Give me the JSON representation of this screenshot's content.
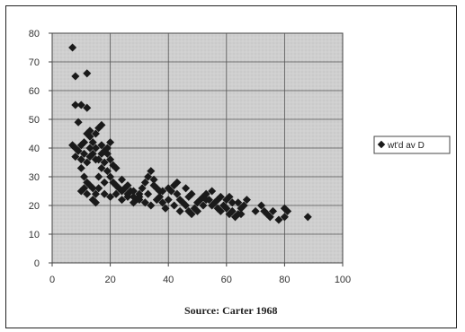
{
  "chart_data": {
    "type": "scatter",
    "caption": "Source: Carter 1968",
    "xlim": [
      0,
      100
    ],
    "ylim": [
      0,
      80
    ],
    "xticks": [
      "0",
      "20",
      "40",
      "60",
      "80",
      "100"
    ],
    "yticks": [
      "0",
      "10",
      "20",
      "30",
      "40",
      "50",
      "60",
      "70",
      "80"
    ],
    "grid": true,
    "legend_position": "right",
    "marker_color": "#1a1a1a",
    "plot_background": "#c9c9c9",
    "series": [
      {
        "name": "wt'd av D",
        "points": [
          [
            7,
            75
          ],
          [
            8,
            65
          ],
          [
            12,
            66
          ],
          [
            8,
            55
          ],
          [
            10,
            55
          ],
          [
            12,
            54
          ],
          [
            9,
            49
          ],
          [
            7,
            41
          ],
          [
            8,
            40
          ],
          [
            10,
            41
          ],
          [
            11,
            42
          ],
          [
            12,
            45
          ],
          [
            13,
            44
          ],
          [
            15,
            45
          ],
          [
            16,
            47
          ],
          [
            17,
            48
          ],
          [
            13,
            40
          ],
          [
            14,
            38
          ],
          [
            15,
            36
          ],
          [
            12,
            35
          ],
          [
            10,
            33
          ],
          [
            11,
            30
          ],
          [
            12,
            28
          ],
          [
            13,
            27
          ],
          [
            14,
            26
          ],
          [
            16,
            30
          ],
          [
            17,
            33
          ],
          [
            18,
            35
          ],
          [
            19,
            32
          ],
          [
            20,
            30
          ],
          [
            21,
            28
          ],
          [
            22,
            27
          ],
          [
            23,
            26
          ],
          [
            24,
            25
          ],
          [
            18,
            28
          ],
          [
            16,
            26
          ],
          [
            15,
            24
          ],
          [
            14,
            22
          ],
          [
            15,
            21
          ],
          [
            11,
            26
          ],
          [
            10,
            25
          ],
          [
            12,
            24
          ],
          [
            20,
            36
          ],
          [
            21,
            34
          ],
          [
            22,
            33
          ],
          [
            19,
            38
          ],
          [
            18,
            39
          ],
          [
            17,
            41
          ],
          [
            14,
            42
          ],
          [
            13,
            46
          ],
          [
            25,
            26
          ],
          [
            26,
            24
          ],
          [
            27,
            25
          ],
          [
            28,
            23
          ],
          [
            29,
            22
          ],
          [
            30,
            24
          ],
          [
            31,
            26
          ],
          [
            32,
            28
          ],
          [
            33,
            30
          ],
          [
            34,
            32
          ],
          [
            35,
            29
          ],
          [
            36,
            26
          ],
          [
            37,
            23
          ],
          [
            38,
            21
          ],
          [
            39,
            19
          ],
          [
            40,
            22
          ],
          [
            41,
            25
          ],
          [
            42,
            27
          ],
          [
            43,
            24
          ],
          [
            44,
            22
          ],
          [
            45,
            21
          ],
          [
            46,
            20
          ],
          [
            47,
            18
          ],
          [
            48,
            17
          ],
          [
            49,
            19
          ],
          [
            50,
            21
          ],
          [
            51,
            22
          ],
          [
            52,
            23
          ],
          [
            53,
            24
          ],
          [
            54,
            22
          ],
          [
            55,
            20
          ],
          [
            56,
            21
          ],
          [
            57,
            22
          ],
          [
            58,
            23
          ],
          [
            59,
            20
          ],
          [
            60,
            19
          ],
          [
            61,
            17
          ],
          [
            62,
            18
          ],
          [
            63,
            16
          ],
          [
            64,
            17
          ],
          [
            65,
            19
          ],
          [
            66,
            20
          ],
          [
            67,
            22
          ],
          [
            58,
            18
          ],
          [
            60,
            22
          ],
          [
            62,
            21
          ],
          [
            55,
            25
          ],
          [
            53,
            22
          ],
          [
            48,
            24
          ],
          [
            46,
            26
          ],
          [
            43,
            28
          ],
          [
            40,
            26
          ],
          [
            38,
            25
          ],
          [
            36,
            22
          ],
          [
            34,
            20
          ],
          [
            32,
            21
          ],
          [
            30,
            23
          ],
          [
            28,
            25
          ],
          [
            26,
            27
          ],
          [
            24,
            29
          ],
          [
            72,
            20
          ],
          [
            73,
            18
          ],
          [
            74,
            17
          ],
          [
            75,
            16
          ],
          [
            76,
            18
          ],
          [
            78,
            15
          ],
          [
            80,
            16
          ],
          [
            80,
            19
          ],
          [
            81,
            18
          ],
          [
            88,
            16
          ],
          [
            70,
            18
          ],
          [
            65,
            17
          ],
          [
            64,
            21
          ],
          [
            61,
            23
          ],
          [
            57,
            19
          ],
          [
            50,
            18
          ],
          [
            44,
            18
          ],
          [
            42,
            20
          ],
          [
            47,
            23
          ],
          [
            52,
            20
          ],
          [
            18,
            24
          ],
          [
            20,
            23
          ],
          [
            22,
            24
          ],
          [
            24,
            22
          ],
          [
            26,
            23
          ],
          [
            28,
            21
          ],
          [
            30,
            22
          ],
          [
            33,
            24
          ],
          [
            35,
            27
          ],
          [
            37,
            25
          ],
          [
            16,
            36
          ],
          [
            17,
            38
          ],
          [
            19,
            40
          ],
          [
            20,
            42
          ],
          [
            15,
            40
          ],
          [
            13,
            37
          ],
          [
            11,
            38
          ],
          [
            9,
            39
          ],
          [
            8,
            37
          ],
          [
            10,
            36
          ]
        ]
      }
    ]
  }
}
